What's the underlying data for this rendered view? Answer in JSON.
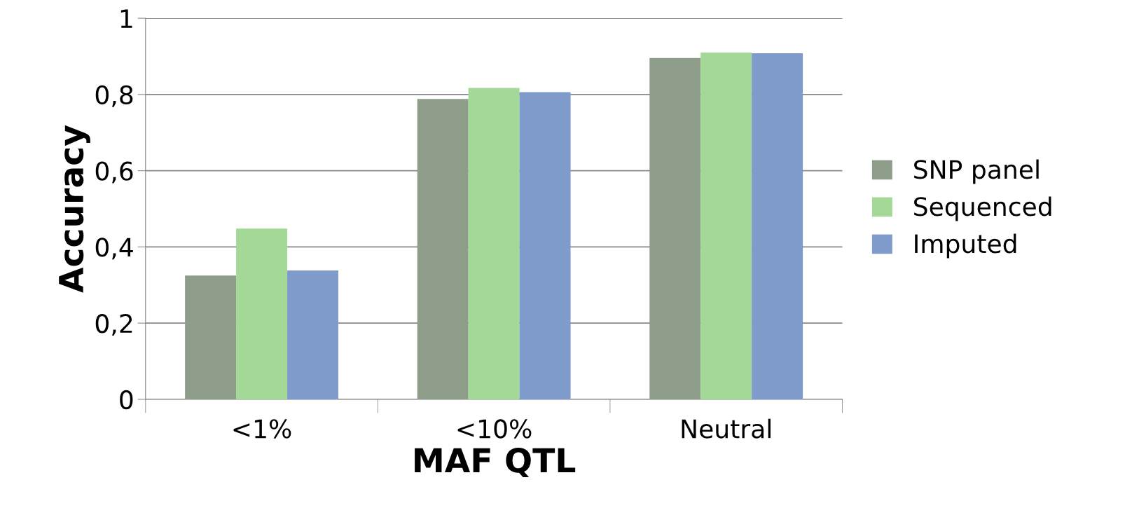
{
  "chart_data": {
    "type": "bar",
    "xlabel": "MAF QTL",
    "ylabel": "Accuracy",
    "categories": [
      "<1%",
      "<10%",
      "Neutral"
    ],
    "series": [
      {
        "name": "SNP panel",
        "color": "#8e9c8a",
        "values": [
          0.325,
          0.788,
          0.896
        ]
      },
      {
        "name": "Sequenced",
        "color": "#a3d897",
        "values": [
          0.448,
          0.817,
          0.91
        ]
      },
      {
        "name": "Imputed",
        "color": "#7f9bcb",
        "values": [
          0.338,
          0.806,
          0.908
        ]
      }
    ],
    "ylim": [
      0,
      1
    ],
    "yticks": [
      {
        "value": 0,
        "label": "0"
      },
      {
        "value": 0.2,
        "label": "0,2"
      },
      {
        "value": 0.4,
        "label": "0,4"
      },
      {
        "value": 0.6,
        "label": "0,6"
      },
      {
        "value": 0.8,
        "label": "0,8"
      },
      {
        "value": 1,
        "label": "1"
      }
    ],
    "grid": "y",
    "legend": "right"
  }
}
